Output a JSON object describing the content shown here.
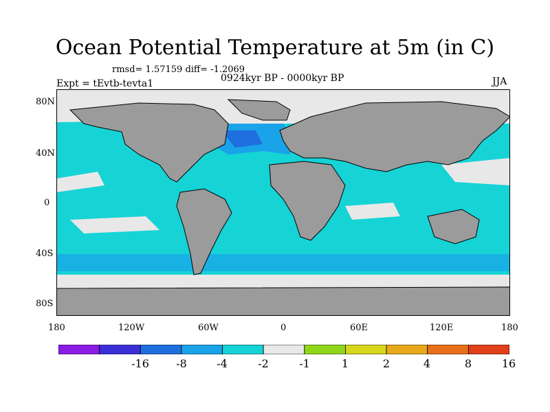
{
  "title": "Ocean Potential Temperature at 5m (in C)",
  "stats": "rmsd= 1.57159 diff= -1.2069",
  "experiment": "Expt = tEvtb-tevta1",
  "period": "0924kyr BP - 0000kyr BP",
  "season": "JJA",
  "lat_labels": [
    "80N",
    "40N",
    "0",
    "40S",
    "80S"
  ],
  "lon_labels": [
    "180",
    "120W",
    "60W",
    "0",
    "60E",
    "120E",
    "180"
  ],
  "colorbar": {
    "labels": [
      "-16",
      "-8",
      "-4",
      "-2",
      "-1",
      "1",
      "2",
      "4",
      "8",
      "16"
    ],
    "colors": [
      "#8a1ce6",
      "#3a2fd6",
      "#1f6fe0",
      "#1aa3e8",
      "#16d3d6",
      "#e8e8e8",
      "#8fd61a",
      "#d6d61a",
      "#e8a81a",
      "#e8701a",
      "#e0401a"
    ]
  },
  "colors": {
    "land": "#9b9b9b",
    "ocean_main": "#16d3d6",
    "ocean_cold": "#1aa3e8",
    "ocean_colder": "#1f6fe0",
    "neutral": "#e8e8e8"
  }
}
